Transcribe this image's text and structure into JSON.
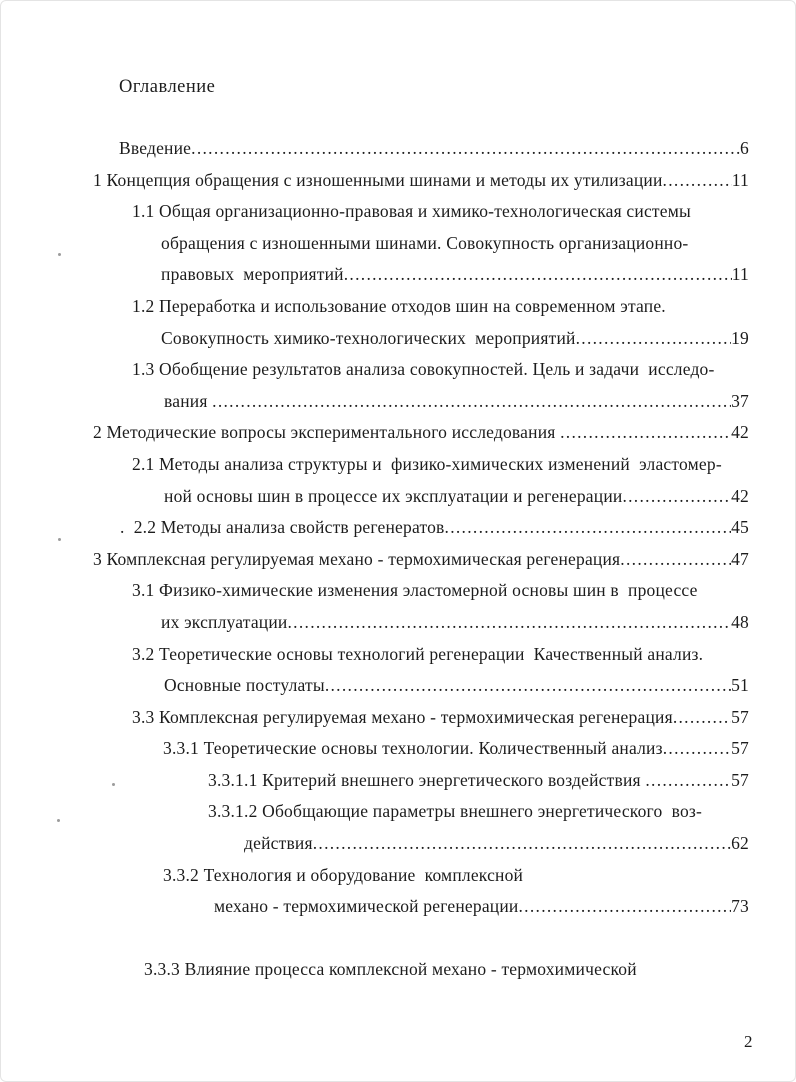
{
  "document": {
    "heading": "Оглавление",
    "page_number": "2"
  },
  "toc": {
    "entries": [
      {
        "text": "Введение",
        "page": "6",
        "indent": 118
      },
      {
        "text": "1 Концепция обращения с изношенными шинами и методы их утилизации",
        "page": "11",
        "indent": 92
      },
      {
        "text": "1.1 Общая организационно-правовая и химико-технологическая системы",
        "indent": 131
      },
      {
        "text": "обращения с изношенными шинами. Совокупность организационно-",
        "indent": 160
      },
      {
        "text": "правовых  мероприятий",
        "page": "11",
        "indent": 160
      },
      {
        "text": "1.2 Переработка и использование отходов шин на современном этапе.",
        "indent": 131
      },
      {
        "text": "Совокупность химико-технологических  мероприятий",
        "page": "19",
        "indent": 160
      },
      {
        "text": "1.3 Обобщение результатов анализа совокупностей. Цель и задачи  исследо-",
        "indent": 131
      },
      {
        "text": "вания ",
        "page": "37",
        "indent": 163
      },
      {
        "text": "2 Методические вопросы экспериментального исследования ",
        "page": "42",
        "indent": 92
      },
      {
        "text": "2.1 Методы анализа структуры и  физико-химических изменений  эластомер-",
        "indent": 131
      },
      {
        "text": "ной основы шин в процессе их эксплуатации и регенерации",
        "page": "42",
        "indent": 163
      },
      {
        "text": ".  2.2 Методы анализа свойств регенератов",
        "page": "45",
        "indent": 119
      },
      {
        "text": "3 Комплексная регулируемая механо - термохимическая регенерация",
        "page": "47",
        "indent": 92
      },
      {
        "text": "3.1 Физико-химические изменения эластомерной основы шин в  процессе",
        "indent": 131
      },
      {
        "text": "их эксплуатации",
        "page": "48",
        "indent": 160
      },
      {
        "text": "3.2 Теоретические основы технологий регенерации  Качественный анализ.",
        "indent": 131
      },
      {
        "text": "Основные постулаты",
        "page": "51",
        "indent": 163
      },
      {
        "text": "3.3 Комплексная регулируемая механо - термохимическая регенерация",
        "page": "57",
        "indent": 131
      },
      {
        "text": "3.3.1 Теоретические основы технологии. Количественный анализ",
        "page": "57",
        "indent": 162
      },
      {
        "text": "3.3.1.1 Критерий внешнего энергетического воздействия ",
        "page": "57",
        "indent": 207
      },
      {
        "text": "3.3.1.2 Обобщающие параметры внешнего энергетического  воз-",
        "indent": 207
      },
      {
        "text": "действия",
        "page": "62",
        "indent": 243
      },
      {
        "text": "3.3.2 Технология и оборудование  комплексной",
        "indent": 162
      },
      {
        "text": "механо - термохимической регенерации",
        "page": "73",
        "indent": 213
      },
      {
        "spacer": true
      },
      {
        "text": "3.3.3 Влияние процесса комплексной механо - термохимической",
        "indent": 143
      }
    ]
  }
}
